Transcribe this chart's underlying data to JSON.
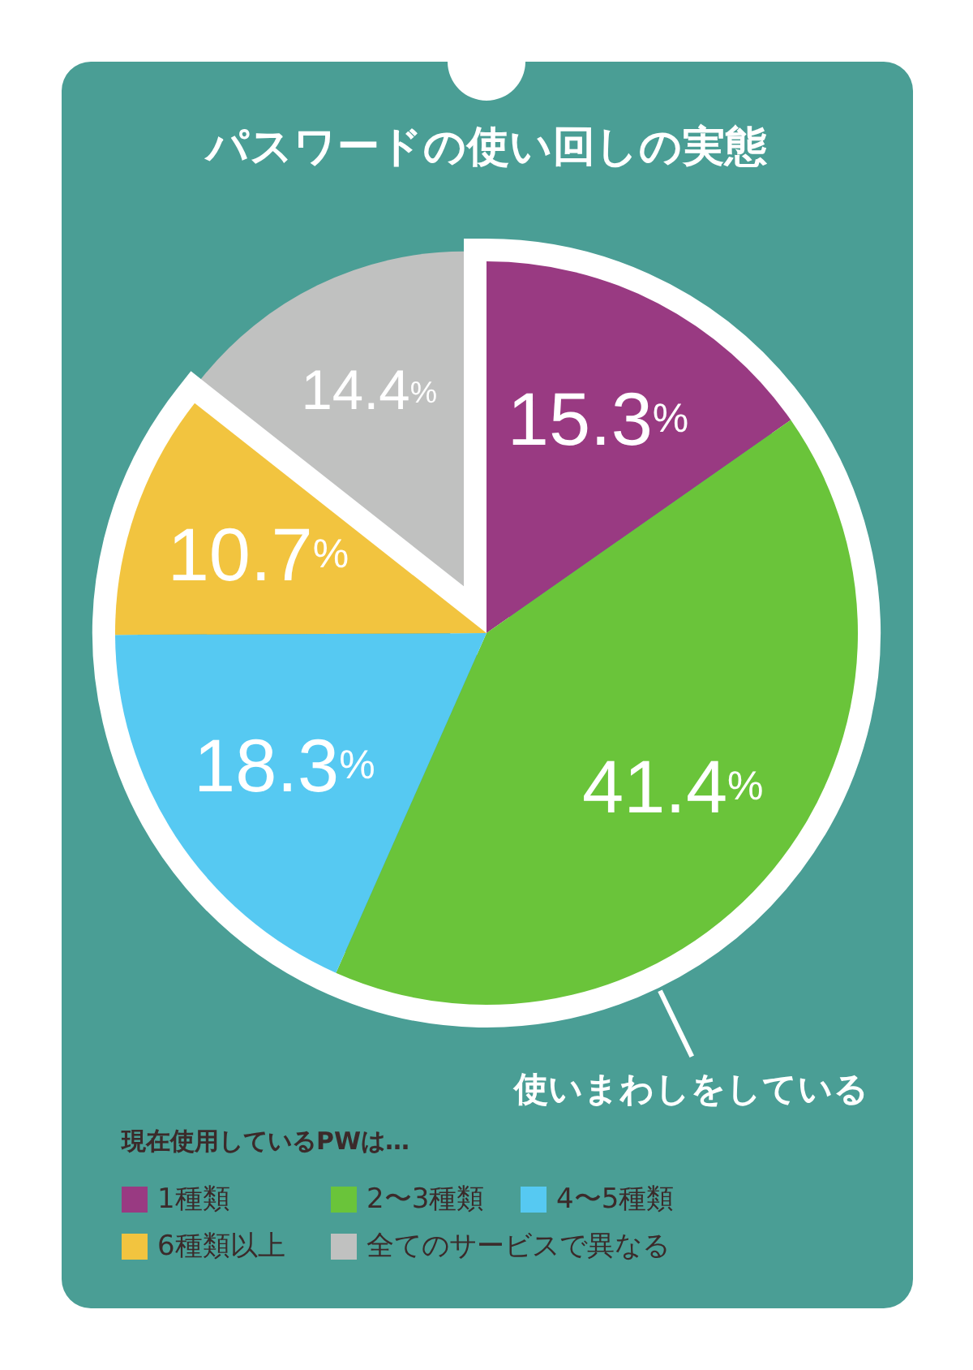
{
  "chart_data": {
    "type": "pie",
    "title": "パスワードの使い回しの実態",
    "categories": [
      "1種類",
      "2〜3種類",
      "4〜5種類",
      "6種類以上",
      "全てのサービスで異なる"
    ],
    "values": [
      15.3,
      41.4,
      18.3,
      10.7,
      14.4
    ],
    "colors": [
      "#993a82",
      "#6ac43a",
      "#56c9f2",
      "#f2c43f",
      "#c0c1c0"
    ],
    "value_labels": [
      "15.3%",
      "41.4%",
      "18.3%",
      "10.7%",
      "14.4%"
    ],
    "legend": "bottom",
    "legend_title": "現在使用しているPWは…",
    "annotations": [
      "使いまわしをしている"
    ]
  }
}
